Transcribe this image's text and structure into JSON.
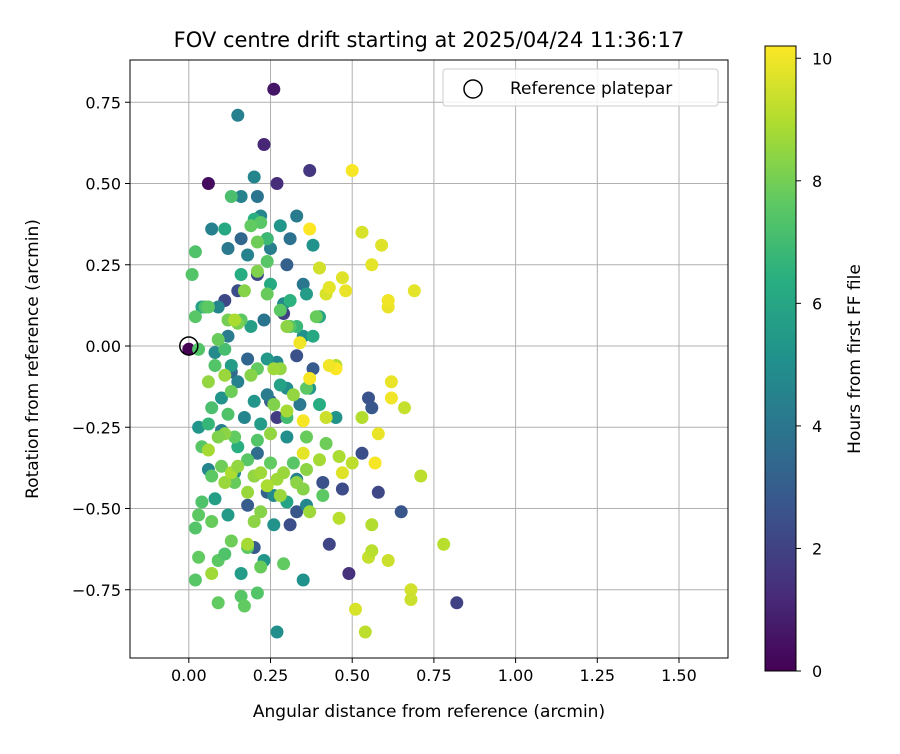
{
  "chart_data": {
    "type": "scatter",
    "title": "FOV centre drift starting at 2025/04/24 11:36:17",
    "xlabel": "Angular distance from reference (arcmin)",
    "ylabel": "Rotation from reference (arcmin)",
    "xlim": [
      -0.18,
      1.65
    ],
    "ylim": [
      -0.96,
      0.88
    ],
    "xticks": [
      "0.00",
      "0.25",
      "0.50",
      "0.75",
      "1.00",
      "1.25",
      "1.50"
    ],
    "yticks": [
      "−0.75",
      "−0.50",
      "−0.25",
      "0.00",
      "0.25",
      "0.50",
      "0.75"
    ],
    "grid": true,
    "legend": {
      "position": "top-right",
      "label": "Reference platepar"
    },
    "reference_point": {
      "x": 0.0,
      "y": 0.0
    },
    "colorbar": {
      "label": "Hours from first FF file",
      "min": 0,
      "max": 10.2,
      "ticks": [
        "0",
        "2",
        "4",
        "6",
        "8",
        "10"
      ],
      "colormap": "viridis"
    },
    "points": [
      [
        0.0,
        -0.01,
        0.0
      ],
      [
        0.06,
        0.5,
        0.3
      ],
      [
        0.26,
        0.79,
        0.6
      ],
      [
        0.23,
        0.62,
        1.1
      ],
      [
        0.27,
        0.5,
        1.3
      ],
      [
        0.37,
        0.54,
        1.6
      ],
      [
        0.82,
        -0.79,
        2.0
      ],
      [
        0.49,
        -0.7,
        1.4
      ],
      [
        0.43,
        -0.61,
        2.1
      ],
      [
        0.58,
        -0.45,
        2.2
      ],
      [
        0.53,
        -0.33,
        2.4
      ],
      [
        0.55,
        -0.16,
        2.6
      ],
      [
        0.56,
        -0.19,
        2.8
      ],
      [
        0.65,
        -0.51,
        2.7
      ],
      [
        0.47,
        -0.44,
        2.3
      ],
      [
        0.41,
        -0.42,
        2.5
      ],
      [
        0.2,
        -0.62,
        2.9
      ],
      [
        0.18,
        -0.49,
        3.0
      ],
      [
        0.33,
        -0.51,
        2.7
      ],
      [
        0.31,
        -0.55,
        2.4
      ],
      [
        0.24,
        -0.45,
        3.2
      ],
      [
        0.27,
        -0.22,
        1.8
      ],
      [
        0.29,
        0.1,
        2.0
      ],
      [
        0.21,
        0.22,
        2.2
      ],
      [
        0.15,
        0.17,
        2.4
      ],
      [
        0.24,
        0.33,
        2.6
      ],
      [
        0.3,
        0.25,
        3.1
      ],
      [
        0.16,
        0.33,
        3.4
      ],
      [
        0.11,
        0.14,
        2.2
      ],
      [
        0.33,
        -0.03,
        2.5
      ],
      [
        0.38,
        -0.07,
        2.9
      ],
      [
        0.25,
        -0.17,
        3.0
      ],
      [
        0.18,
        -0.04,
        3.3
      ],
      [
        0.13,
        -0.08,
        3.5
      ],
      [
        0.21,
        -0.33,
        3.6
      ],
      [
        0.15,
        0.71,
        4.4
      ],
      [
        0.2,
        0.52,
        4.6
      ],
      [
        0.21,
        0.46,
        3.9
      ],
      [
        0.16,
        0.46,
        4.5
      ],
      [
        0.22,
        0.4,
        4.7
      ],
      [
        0.33,
        0.4,
        4.2
      ],
      [
        0.31,
        0.33,
        3.8
      ],
      [
        0.25,
        0.3,
        4.3
      ],
      [
        0.12,
        0.3,
        4.1
      ],
      [
        0.18,
        0.28,
        4.5
      ],
      [
        0.29,
        0.13,
        4.8
      ],
      [
        0.35,
        0.19,
        4.0
      ],
      [
        0.23,
        0.08,
        3.9
      ],
      [
        0.07,
        0.36,
        4.4
      ],
      [
        0.09,
        0.12,
        4.6
      ],
      [
        0.12,
        0.03,
        4.2
      ],
      [
        0.08,
        -0.02,
        4.8
      ],
      [
        0.15,
        -0.11,
        4.4
      ],
      [
        0.17,
        -0.22,
        4.6
      ],
      [
        0.24,
        -0.15,
        4.2
      ],
      [
        0.3,
        -0.13,
        4.9
      ],
      [
        0.34,
        -0.18,
        4.1
      ],
      [
        0.27,
        -0.05,
        4.7
      ],
      [
        0.1,
        -0.26,
        4.3
      ],
      [
        0.06,
        -0.38,
        4.6
      ],
      [
        0.14,
        -0.39,
        4.9
      ],
      [
        0.2,
        -0.4,
        4.4
      ],
      [
        0.26,
        -0.46,
        4.8
      ],
      [
        0.33,
        -0.41,
        4.5
      ],
      [
        0.36,
        -0.49,
        4.7
      ],
      [
        0.35,
        -0.72,
        5.1
      ],
      [
        0.27,
        -0.88,
        5.0
      ],
      [
        0.45,
        -0.22,
        5.2
      ],
      [
        0.37,
        -0.13,
        5.4
      ],
      [
        0.3,
        -0.28,
        5.0
      ],
      [
        0.2,
        -0.17,
        5.3
      ],
      [
        0.12,
        -0.52,
        5.5
      ],
      [
        0.26,
        -0.55,
        5.2
      ],
      [
        0.16,
        -0.7,
        5.6
      ],
      [
        0.23,
        -0.66,
        5.3
      ],
      [
        0.1,
        -0.16,
        5.2
      ],
      [
        0.13,
        -0.06,
        5.6
      ],
      [
        0.24,
        -0.04,
        5.4
      ],
      [
        0.35,
        0.03,
        5.1
      ],
      [
        0.38,
        0.31,
        5.2
      ],
      [
        0.28,
        0.37,
        5.3
      ],
      [
        0.36,
        0.16,
        5.6
      ],
      [
        0.19,
        0.06,
        5.7
      ],
      [
        0.04,
        0.12,
        5.8
      ],
      [
        0.03,
        -0.25,
        5.3
      ],
      [
        0.08,
        -0.47,
        5.7
      ],
      [
        0.3,
        -0.48,
        5.9
      ],
      [
        0.28,
        -0.12,
        5.8
      ],
      [
        0.22,
        -0.24,
        5.6
      ],
      [
        0.4,
        0.09,
        6.0
      ],
      [
        0.25,
        0.19,
        6.2
      ],
      [
        0.16,
        0.22,
        6.3
      ],
      [
        0.11,
        0.36,
        6.1
      ],
      [
        0.2,
        0.39,
        6.4
      ],
      [
        0.31,
        0.14,
        6.5
      ],
      [
        0.15,
        -0.31,
        6.4
      ],
      [
        0.06,
        -0.24,
        6.7
      ],
      [
        0.4,
        -0.18,
        6.3
      ],
      [
        0.33,
        0.06,
        6.8
      ],
      [
        0.38,
        0.03,
        6.1
      ],
      [
        0.24,
        0.33,
        6.9
      ],
      [
        0.3,
        -0.22,
        7.0
      ],
      [
        0.11,
        -0.01,
        7.1
      ],
      [
        0.13,
        0.46,
        7.2
      ],
      [
        0.02,
        0.29,
        7.3
      ],
      [
        0.01,
        0.22,
        7.4
      ],
      [
        0.02,
        0.09,
        7.5
      ],
      [
        0.05,
        0.12,
        7.2
      ],
      [
        0.06,
        0.12,
        7.6
      ],
      [
        0.03,
        -0.01,
        7.4
      ],
      [
        0.07,
        -0.19,
        7.2
      ],
      [
        0.04,
        -0.31,
        7.5
      ],
      [
        0.04,
        -0.48,
        7.3
      ],
      [
        0.03,
        -0.52,
        7.6
      ],
      [
        0.02,
        -0.56,
        7.4
      ],
      [
        0.03,
        -0.65,
        7.7
      ],
      [
        0.02,
        -0.72,
        7.5
      ],
      [
        0.07,
        -0.54,
        7.8
      ],
      [
        0.09,
        -0.66,
        7.6
      ],
      [
        0.11,
        -0.64,
        7.3
      ],
      [
        0.16,
        -0.77,
        7.5
      ],
      [
        0.17,
        -0.8,
        7.7
      ],
      [
        0.21,
        -0.76,
        7.4
      ],
      [
        0.22,
        -0.68,
        7.8
      ],
      [
        0.18,
        -0.62,
        7.6
      ],
      [
        0.13,
        -0.6,
        7.9
      ],
      [
        0.09,
        -0.79,
        7.7
      ],
      [
        0.18,
        -0.35,
        7.5
      ],
      [
        0.14,
        -0.28,
        7.7
      ],
      [
        0.12,
        -0.21,
        7.3
      ],
      [
        0.1,
        -0.37,
        7.9
      ],
      [
        0.07,
        -0.4,
        7.6
      ],
      [
        0.14,
        -0.42,
        7.8
      ],
      [
        0.21,
        -0.29,
        7.4
      ],
      [
        0.25,
        -0.36,
        7.7
      ],
      [
        0.32,
        -0.36,
        7.5
      ],
      [
        0.36,
        -0.28,
        7.8
      ],
      [
        0.41,
        -0.46,
        7.6
      ],
      [
        0.29,
        -0.67,
        7.7
      ],
      [
        0.31,
        0.06,
        7.4
      ],
      [
        0.28,
        0.11,
        7.6
      ],
      [
        0.24,
        0.16,
        7.8
      ],
      [
        0.22,
        0.38,
        7.5
      ],
      [
        0.19,
        0.37,
        7.7
      ],
      [
        0.21,
        0.32,
        7.9
      ],
      [
        0.16,
        0.08,
        7.6
      ],
      [
        0.09,
        0.02,
        7.8
      ],
      [
        0.08,
        -0.06,
        7.4
      ],
      [
        0.13,
        -0.14,
        7.9
      ],
      [
        0.21,
        -0.07,
        7.7
      ],
      [
        0.24,
        0.26,
        7.5
      ],
      [
        0.39,
        0.09,
        7.8
      ],
      [
        0.36,
        -0.13,
        7.6
      ],
      [
        0.42,
        -0.3,
        7.9
      ],
      [
        0.12,
        0.08,
        8.0
      ],
      [
        0.15,
        0.07,
        8.1
      ],
      [
        0.21,
        0.23,
        8.2
      ],
      [
        0.17,
        0.17,
        8.3
      ],
      [
        0.3,
        0.06,
        8.4
      ],
      [
        0.28,
        -0.07,
        8.5
      ],
      [
        0.26,
        -0.18,
        8.2
      ],
      [
        0.19,
        -0.09,
        8.3
      ],
      [
        0.11,
        -0.27,
        8.4
      ],
      [
        0.18,
        -0.45,
        8.6
      ],
      [
        0.2,
        -0.4,
        8.5
      ],
      [
        0.22,
        -0.51,
        8.3
      ],
      [
        0.27,
        -0.41,
        8.7
      ],
      [
        0.36,
        -0.38,
        8.4
      ],
      [
        0.28,
        -0.46,
        8.6
      ],
      [
        0.06,
        -0.11,
        8.5
      ],
      [
        0.09,
        -0.28,
        8.2
      ],
      [
        0.33,
        -0.42,
        8.4
      ],
      [
        0.4,
        -0.35,
        8.8
      ],
      [
        0.46,
        -0.34,
        8.9
      ],
      [
        0.37,
        -0.51,
        8.7
      ],
      [
        0.35,
        -0.44,
        8.3
      ],
      [
        0.29,
        -0.39,
        8.6
      ],
      [
        0.3,
        -0.2,
        8.8
      ],
      [
        0.25,
        -0.27,
        8.5
      ],
      [
        0.22,
        -0.39,
        8.7
      ],
      [
        0.24,
        -0.43,
        8.9
      ],
      [
        0.2,
        -0.54,
        8.4
      ],
      [
        0.18,
        -0.61,
        8.8
      ],
      [
        0.11,
        -0.42,
        8.6
      ],
      [
        0.13,
        -0.39,
        8.9
      ],
      [
        0.15,
        -0.37,
        8.5
      ],
      [
        0.07,
        -0.7,
        8.7
      ],
      [
        0.06,
        -0.32,
        8.8
      ],
      [
        0.11,
        -0.09,
        8.6
      ],
      [
        0.14,
        0.08,
        8.9
      ],
      [
        0.26,
        -0.07,
        8.7
      ],
      [
        0.32,
        -0.15,
        8.5
      ],
      [
        0.45,
        -0.06,
        9.0
      ],
      [
        0.46,
        -0.53,
        9.1
      ],
      [
        0.5,
        -0.36,
        9.2
      ],
      [
        0.53,
        -0.22,
        9.0
      ],
      [
        0.55,
        -0.65,
        9.3
      ],
      [
        0.54,
        -0.88,
        9.2
      ],
      [
        0.56,
        -0.63,
        9.1
      ],
      [
        0.56,
        -0.55,
        9.0
      ],
      [
        0.61,
        -0.66,
        9.4
      ],
      [
        0.66,
        -0.19,
        9.3
      ],
      [
        0.71,
        -0.4,
        9.2
      ],
      [
        0.68,
        -0.75,
        9.5
      ],
      [
        0.78,
        -0.61,
        9.1
      ],
      [
        0.68,
        -0.78,
        9.4
      ],
      [
        0.51,
        -0.81,
        9.6
      ],
      [
        0.47,
        -0.39,
        9.7
      ],
      [
        0.42,
        -0.22,
        9.4
      ],
      [
        0.35,
        -0.33,
        9.8
      ],
      [
        0.4,
        0.24,
        9.5
      ],
      [
        0.42,
        0.16,
        9.6
      ],
      [
        0.43,
        0.18,
        9.8
      ],
      [
        0.47,
        0.21,
        9.7
      ],
      [
        0.48,
        0.17,
        9.9
      ],
      [
        0.53,
        0.35,
        9.6
      ],
      [
        0.56,
        0.25,
        9.8
      ],
      [
        0.59,
        0.31,
        9.7
      ],
      [
        0.61,
        0.12,
        9.9
      ],
      [
        0.61,
        0.14,
        10.0
      ],
      [
        0.69,
        0.17,
        9.8
      ],
      [
        0.62,
        -0.11,
        9.9
      ],
      [
        0.62,
        -0.16,
        10.0
      ],
      [
        0.58,
        -0.27,
        9.9
      ],
      [
        0.57,
        -0.36,
        10.1
      ],
      [
        0.5,
        0.54,
        10.1
      ],
      [
        0.37,
        0.36,
        10.2
      ],
      [
        0.34,
        0.01,
        10.0
      ],
      [
        0.37,
        -0.1,
        10.1
      ],
      [
        0.45,
        -0.07,
        10.2
      ],
      [
        0.43,
        -0.06,
        10.0
      ],
      [
        0.35,
        -0.23,
        10.1
      ]
    ]
  }
}
